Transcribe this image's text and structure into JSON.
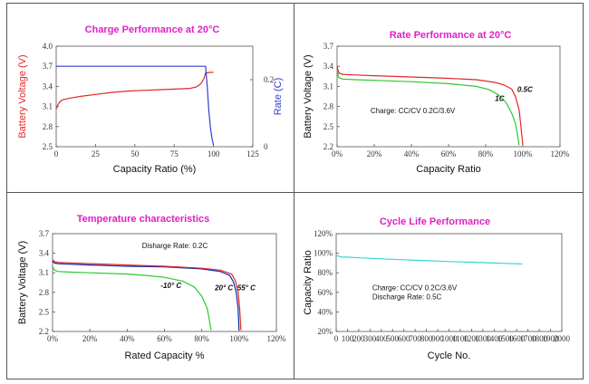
{
  "colors": {
    "title": "#e020c8",
    "red": "#e02828",
    "blue": "#3040d0",
    "green": "#2ec82e",
    "darkblue": "#0a2aa8",
    "cyan": "#30d8d8",
    "axis": "#555555",
    "text": "#111111"
  },
  "chart_data": [
    {
      "type": "line",
      "title": "Charge Performance  at 20°C",
      "xlabel": "Capacity Ratio (%)",
      "ylabel": "Battery Voltage (V)",
      "y2label": "Rate (C)",
      "xlim": [
        0,
        125
      ],
      "ylim": [
        2.5,
        4.0
      ],
      "y2lim": [
        0,
        0.3
      ],
      "xticks": [
        "0",
        "25",
        "50",
        "75",
        "100",
        "125"
      ],
      "yticks": [
        "2.5",
        "2.8",
        "3.1",
        "3.4",
        "3.7",
        "4.0"
      ],
      "y2ticks": [
        "0",
        "0.2"
      ],
      "grid": false,
      "series": [
        {
          "axis": "left",
          "color": "red",
          "points": [
            [
              0,
              3.06
            ],
            [
              1,
              3.12
            ],
            [
              2,
              3.16
            ],
            [
              4,
              3.2
            ],
            [
              8,
              3.22
            ],
            [
              15,
              3.25
            ],
            [
              25,
              3.28
            ],
            [
              35,
              3.31
            ],
            [
              45,
              3.33
            ],
            [
              55,
              3.34
            ],
            [
              65,
              3.35
            ],
            [
              75,
              3.36
            ],
            [
              85,
              3.37
            ],
            [
              89,
              3.39
            ],
            [
              92,
              3.44
            ],
            [
              94,
              3.52
            ],
            [
              95,
              3.6
            ],
            [
              98,
              3.61
            ],
            [
              100,
              3.61
            ]
          ]
        },
        {
          "axis": "right",
          "color": "blue",
          "points": [
            [
              0,
              0.24
            ],
            [
              20,
              0.24
            ],
            [
              40,
              0.24
            ],
            [
              60,
              0.24
            ],
            [
              80,
              0.24
            ],
            [
              95,
              0.24
            ],
            [
              96,
              0.18
            ],
            [
              97,
              0.11
            ],
            [
              98,
              0.06
            ],
            [
              99,
              0.025
            ],
            [
              100,
              0.005
            ]
          ]
        }
      ]
    },
    {
      "type": "line",
      "title": "Rate Performance at 20°C",
      "xlabel": "Capacity Ratio",
      "ylabel": "Battery Voltage (V)",
      "xlim": [
        0,
        120
      ],
      "ylim": [
        2.2,
        3.7
      ],
      "xticks": [
        "0%",
        "20%",
        "40%",
        "60%",
        "80%",
        "100%",
        "120%"
      ],
      "yticks": [
        "2.2",
        "2.5",
        "2.8",
        "3.1",
        "3.4",
        "3.7"
      ],
      "grid": false,
      "annotations": [
        {
          "text": "Charge: CC/CV 0.2C/3.6V",
          "x": 18,
          "y": 2.7
        }
      ],
      "series": [
        {
          "name": "0.5C",
          "color": "red",
          "label_at": [
            97,
            3.02
          ],
          "points": [
            [
              0,
              3.41
            ],
            [
              0.5,
              3.34
            ],
            [
              1,
              3.3
            ],
            [
              3,
              3.28
            ],
            [
              10,
              3.27
            ],
            [
              20,
              3.26
            ],
            [
              40,
              3.24
            ],
            [
              60,
              3.22
            ],
            [
              75,
              3.2
            ],
            [
              85,
              3.16
            ],
            [
              90,
              3.12
            ],
            [
              94,
              3.06
            ],
            [
              96,
              2.95
            ],
            [
              97,
              2.85
            ],
            [
              98,
              2.75
            ],
            [
              99,
              2.5
            ],
            [
              100,
              2.22
            ]
          ]
        },
        {
          "name": "1C",
          "color": "green",
          "label_at": [
            85,
            2.88
          ],
          "points": [
            [
              0,
              3.34
            ],
            [
              0.5,
              3.27
            ],
            [
              1,
              3.23
            ],
            [
              3,
              3.21
            ],
            [
              10,
              3.2
            ],
            [
              20,
              3.19
            ],
            [
              40,
              3.17
            ],
            [
              60,
              3.14
            ],
            [
              75,
              3.1
            ],
            [
              82,
              3.05
            ],
            [
              87,
              2.97
            ],
            [
              91,
              2.86
            ],
            [
              94,
              2.7
            ],
            [
              96,
              2.55
            ],
            [
              97,
              2.4
            ],
            [
              98,
              2.22
            ]
          ]
        }
      ]
    },
    {
      "type": "line",
      "title": "Temperature characteristics",
      "xlabel": "Rated Capacity %",
      "ylabel": "Battery Voltage (V)",
      "xlim": [
        0,
        120
      ],
      "ylim": [
        2.2,
        3.7
      ],
      "xticks": [
        "0%",
        "20%",
        "40%",
        "60%",
        "80%",
        "100%",
        "120%"
      ],
      "yticks": [
        "2.2",
        "2.5",
        "2.8",
        "3.1",
        "3.4",
        "3.7"
      ],
      "grid": false,
      "annotations": [
        {
          "text": "Disharge Rate: 0.2C",
          "x": 48,
          "y": 3.48
        }
      ],
      "series": [
        {
          "name": "-10° C",
          "color": "green",
          "label_at": [
            58,
            2.87
          ],
          "points": [
            [
              0,
              3.2
            ],
            [
              1,
              3.14
            ],
            [
              3,
              3.12
            ],
            [
              10,
              3.11
            ],
            [
              20,
              3.1
            ],
            [
              30,
              3.09
            ],
            [
              40,
              3.08
            ],
            [
              50,
              3.06
            ],
            [
              60,
              3.03
            ],
            [
              70,
              2.97
            ],
            [
              76,
              2.88
            ],
            [
              80,
              2.74
            ],
            [
              83,
              2.55
            ],
            [
              85,
              2.22
            ]
          ]
        },
        {
          "name": "20° C",
          "color": "darkblue",
          "label_at": [
            87,
            2.83
          ],
          "points": [
            [
              0,
              3.28
            ],
            [
              1,
              3.25
            ],
            [
              3,
              3.24
            ],
            [
              10,
              3.23
            ],
            [
              20,
              3.22
            ],
            [
              40,
              3.2
            ],
            [
              60,
              3.19
            ],
            [
              80,
              3.16
            ],
            [
              90,
              3.12
            ],
            [
              95,
              3.06
            ],
            [
              97,
              2.96
            ],
            [
              98.5,
              2.8
            ],
            [
              99.5,
              2.55
            ],
            [
              100,
              2.22
            ]
          ]
        },
        {
          "name": "55° C",
          "color": "red",
          "label_at": [
            99,
            2.83
          ],
          "points": [
            [
              0,
              3.3
            ],
            [
              1,
              3.27
            ],
            [
              3,
              3.26
            ],
            [
              10,
              3.25
            ],
            [
              20,
              3.24
            ],
            [
              40,
              3.22
            ],
            [
              60,
              3.2
            ],
            [
              80,
              3.17
            ],
            [
              90,
              3.14
            ],
            [
              96,
              3.08
            ],
            [
              98,
              2.98
            ],
            [
              99.5,
              2.8
            ],
            [
              100.3,
              2.55
            ],
            [
              101,
              2.22
            ]
          ]
        }
      ]
    },
    {
      "type": "line",
      "title": "Cycle Life Performance",
      "xlabel": "Cycle No.",
      "ylabel": "Capacity Ratio",
      "xlim": [
        0,
        2000
      ],
      "ylim": [
        20,
        120
      ],
      "xticks": [
        "0",
        "100",
        "200",
        "300",
        "400",
        "500",
        "600",
        "700",
        "800",
        "900",
        "1000",
        "1100",
        "1200",
        "1300",
        "1400",
        "1500",
        "1600",
        "1700",
        "1800",
        "1900",
        "2000"
      ],
      "yticks": [
        "20%",
        "40%",
        "60%",
        "80%",
        "100%",
        "120%"
      ],
      "grid": false,
      "annotations": [
        {
          "text": "Charge: CC/CV 0.2C/3.6V",
          "x": 320,
          "y": 62
        },
        {
          "text": "Discharge Rate: 0.5C",
          "x": 320,
          "y": 53
        }
      ],
      "series": [
        {
          "color": "cyan",
          "points": [
            [
              0,
              98
            ],
            [
              20,
              97
            ],
            [
              50,
              96
            ],
            [
              100,
              96
            ],
            [
              200,
              95.3
            ],
            [
              300,
              94.8
            ],
            [
              400,
              94.3
            ],
            [
              500,
              93.8
            ],
            [
              600,
              93.3
            ],
            [
              700,
              92.8
            ],
            [
              800,
              92.3
            ],
            [
              900,
              91.9
            ],
            [
              1000,
              91.5
            ],
            [
              1100,
              91.1
            ],
            [
              1200,
              90.8
            ],
            [
              1300,
              90.4
            ],
            [
              1400,
              90
            ],
            [
              1500,
              89.6
            ],
            [
              1650,
              89
            ]
          ]
        }
      ]
    }
  ]
}
